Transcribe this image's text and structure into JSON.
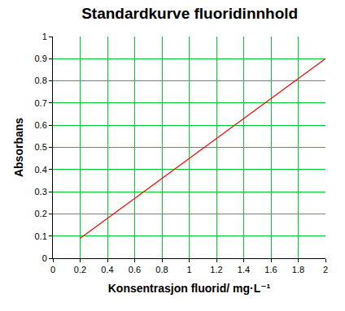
{
  "chart_data": {
    "type": "line",
    "title": "Standardkurve fluoridinnhold",
    "x_label": "Konsentrasjon fluorid/ mg·L⁻¹",
    "y_label": "Absorbans",
    "x": [
      0.2,
      2
    ],
    "values": [
      0.09,
      0.9
    ],
    "color": "#ff0000",
    "xlim": [
      0,
      2
    ],
    "xticks": [
      0,
      0.2,
      0.4,
      0.6,
      0.8,
      1,
      1.2,
      1.4,
      1.6,
      1.8,
      2
    ],
    "ylim": [
      0,
      1
    ],
    "yticks": [
      0,
      0.1,
      0.2,
      0.3,
      0.4,
      0.5,
      0.6,
      0.7,
      0.8,
      0.9,
      1
    ],
    "grid": true
  }
}
